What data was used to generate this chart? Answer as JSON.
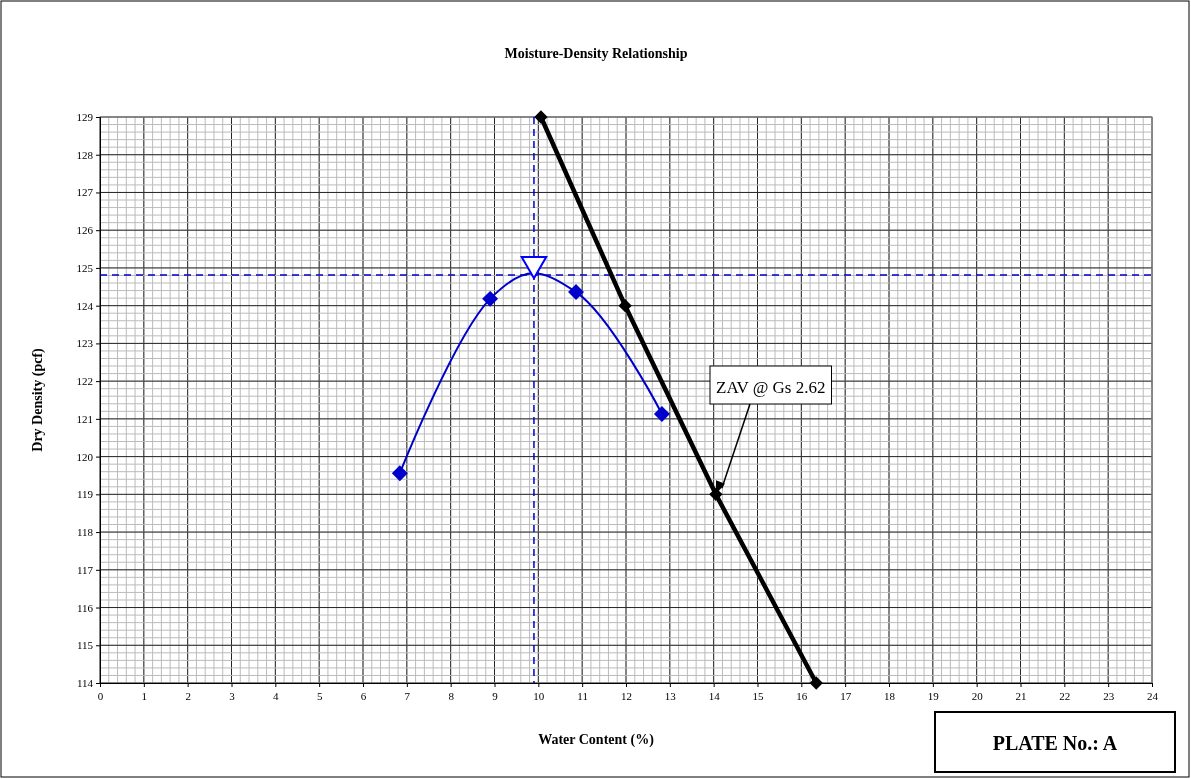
{
  "chart_data": {
    "type": "line",
    "title": "Moisture-Density Relationship",
    "xlabel": "Water Content (%)",
    "ylabel": "Dry Density (pcf)",
    "xlim": [
      0,
      24
    ],
    "xticks": [
      0,
      1,
      2,
      3,
      4,
      5,
      6,
      7,
      8,
      9,
      10,
      11,
      12,
      13,
      14,
      15,
      16,
      17,
      18,
      19,
      20,
      21,
      22,
      23,
      24
    ],
    "ylim": [
      114,
      129
    ],
    "yticks": [
      114,
      115,
      116,
      117,
      118,
      119,
      120,
      121,
      122,
      123,
      124,
      125,
      126,
      127,
      128,
      129
    ],
    "grid": true,
    "series": [
      {
        "color": "#0000cc",
        "marker": "diamond",
        "x": [
          6.84,
          8.9,
          10.86,
          12.82
        ],
        "values": [
          119.56,
          124.18,
          124.36,
          121.13
        ]
      },
      {
        "color": "#000000",
        "marker": "diamond",
        "x": [
          10.06,
          11.98,
          14.05,
          16.34
        ],
        "values": [
          129,
          124,
          119,
          114
        ]
      },
      {
        "type": "scatter",
        "color": "#0000ff",
        "marker": "triangle",
        "x": [
          9.9
        ],
        "values": [
          125.1
        ]
      }
    ],
    "ref_lines": [
      {
        "axis": "x",
        "value": 9.9,
        "color": "#0000cc",
        "line_style": "dashed"
      },
      {
        "axis": "y",
        "value": 124.81,
        "color": "#0000cc",
        "line_style": "dashed"
      }
    ],
    "annotations": [
      {
        "text": "ZAV @ Gs 2.62",
        "x": 14.05,
        "y": 119
      },
      "PLATE No.: A"
    ]
  }
}
